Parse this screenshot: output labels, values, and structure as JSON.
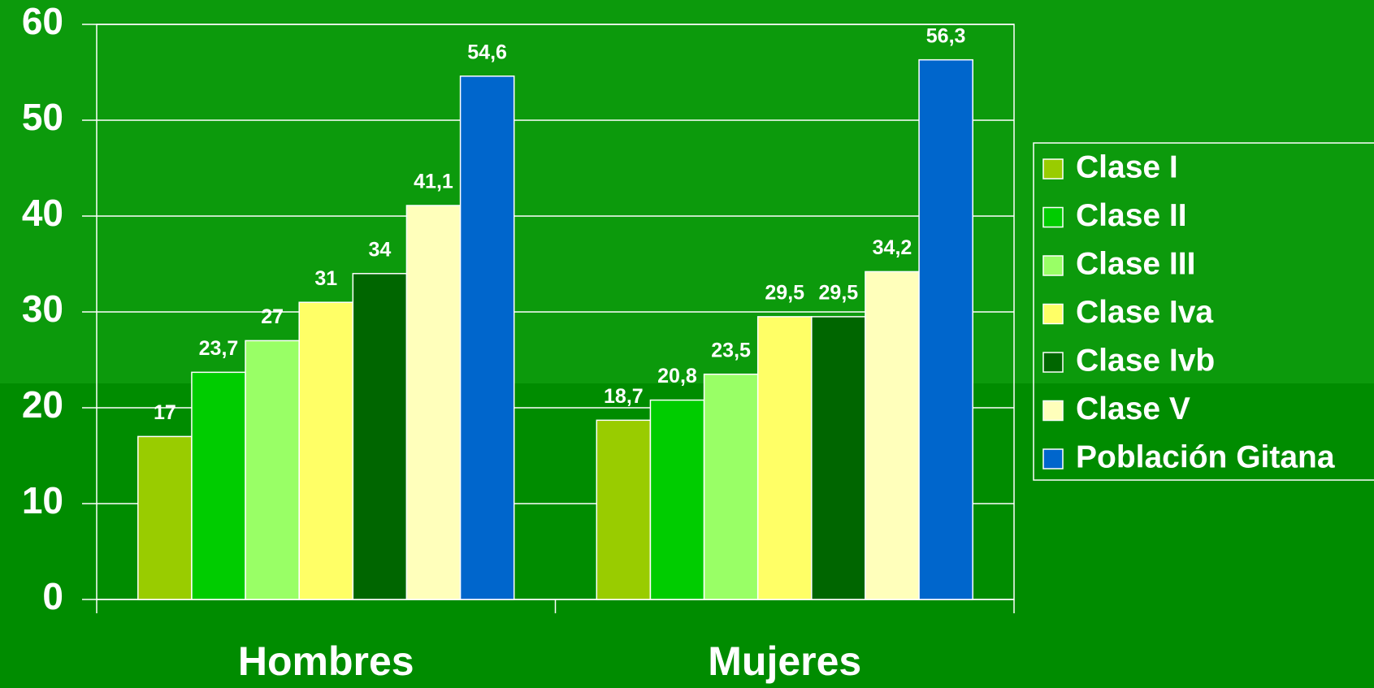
{
  "chart_data": {
    "type": "bar",
    "categories": [
      "Hombres",
      "Mujeres"
    ],
    "series": [
      {
        "name": "Clase I",
        "color": "#99cc00",
        "values": [
          17,
          18.7
        ],
        "value_labels": [
          "17",
          "18,7"
        ]
      },
      {
        "name": "Clase II",
        "color": "#00cc00",
        "values": [
          23.7,
          20.8
        ],
        "value_labels": [
          "23,7",
          "20,8"
        ]
      },
      {
        "name": "Clase III",
        "color": "#99ff66",
        "values": [
          27,
          23.5
        ],
        "value_labels": [
          "27",
          "23,5"
        ]
      },
      {
        "name": "Clase Iva",
        "color": "#ffff66",
        "values": [
          31,
          29.5
        ],
        "value_labels": [
          "31",
          "29,5"
        ]
      },
      {
        "name": "Clase Ivb",
        "color": "#006600",
        "values": [
          34,
          29.5
        ],
        "value_labels": [
          "34",
          "29,5"
        ]
      },
      {
        "name": "Clase V",
        "color": "#ffffbb",
        "values": [
          41.1,
          34.2
        ],
        "value_labels": [
          "41,1",
          "34,2"
        ]
      },
      {
        "name": "Población Gitana",
        "color": "#0066cc",
        "values": [
          54.6,
          56.3
        ],
        "value_labels": [
          "54,6",
          "56,3"
        ]
      }
    ],
    "ylim": [
      0,
      60
    ],
    "yticks": [
      0,
      10,
      20,
      30,
      40,
      50,
      60
    ],
    "grid": true,
    "legend": "right"
  }
}
